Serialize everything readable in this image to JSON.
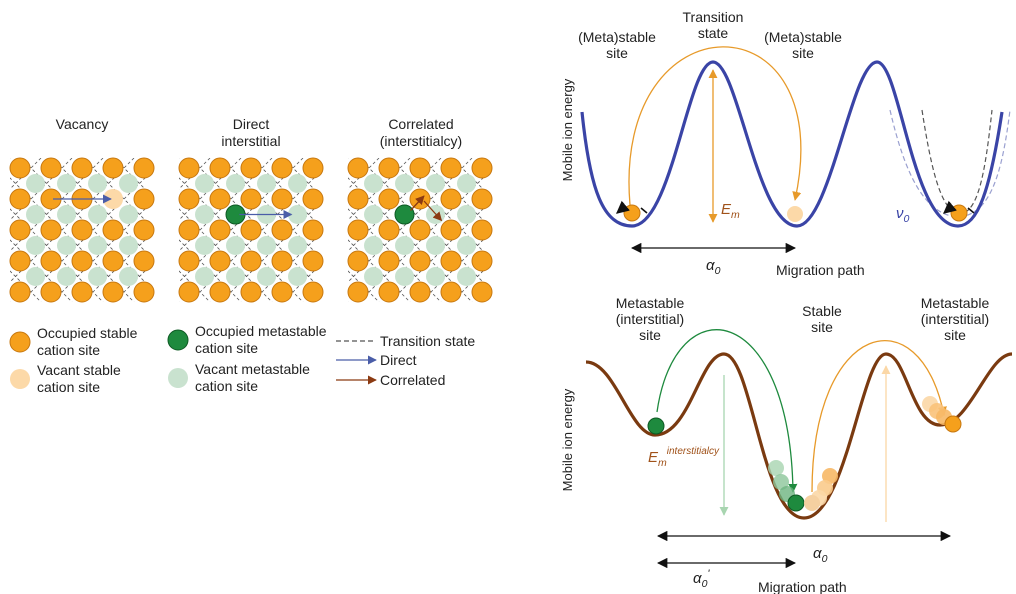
{
  "panel_left": {
    "lattices": [
      {
        "title_lines": [
          "Vacancy"
        ]
      },
      {
        "title_lines": [
          "Direct",
          "interstitial"
        ]
      },
      {
        "title_lines": [
          "Correlated",
          "(interstitialcy)"
        ]
      }
    ],
    "legend": [
      {
        "id": "occupied-stable",
        "lines": [
          "Occupied stable",
          "cation site"
        ],
        "color": "#F5A01C"
      },
      {
        "id": "vacant-stable",
        "lines": [
          "Vacant stable",
          "cation site"
        ],
        "color": "#FCD9A8"
      },
      {
        "id": "occupied-metastable",
        "lines": [
          "Occupied metastable",
          "cation site"
        ],
        "color": "#1E8A3E"
      },
      {
        "id": "vacant-metastable",
        "lines": [
          "Vacant metastable",
          "cation site"
        ],
        "color": "#C9E2CF"
      },
      {
        "id": "transition-state",
        "lines": [
          "Transition state"
        ],
        "color": "#555555"
      },
      {
        "id": "direct",
        "lines": [
          "Direct"
        ],
        "color": "#4A5DA8"
      },
      {
        "id": "correlated",
        "lines": [
          "Correlated"
        ],
        "color": "#8B3A12"
      }
    ]
  },
  "panel_top": {
    "left_site_lines": [
      "(Meta)stable",
      "site"
    ],
    "transition_lines": [
      "Transition",
      "state"
    ],
    "right_site_lines": [
      "(Meta)stable",
      "site"
    ],
    "ylabel": "Mobile ion energy",
    "energy_symbol": "E",
    "energy_sub": "m",
    "freq_symbol": "ν",
    "freq_sub": "0",
    "distance_symbol": "α",
    "distance_sub": "0",
    "xlabel": "Migration path",
    "curve_color": "#3A44A6",
    "arc_color": "#E79A2A"
  },
  "panel_bottom": {
    "left_site_lines": [
      "Metastable",
      "(interstitial)",
      "site"
    ],
    "center_site_lines": [
      "Stable",
      "site"
    ],
    "right_site_lines": [
      "Metastable",
      "(interstitial)",
      "site"
    ],
    "ylabel": "Mobile ion energy",
    "energy_symbol": "E",
    "energy_sub": "m",
    "energy_sup": "interstitialcy",
    "distance_symbol": "α",
    "distance_sub": "0",
    "distance2_symbol": "α",
    "distance2_sub": "0",
    "distance2_prime": "'",
    "xlabel": "Migration path",
    "curve_color": "#7A3A10",
    "green_color": "#1E8A3E",
    "orange_color": "#F5A01C"
  }
}
